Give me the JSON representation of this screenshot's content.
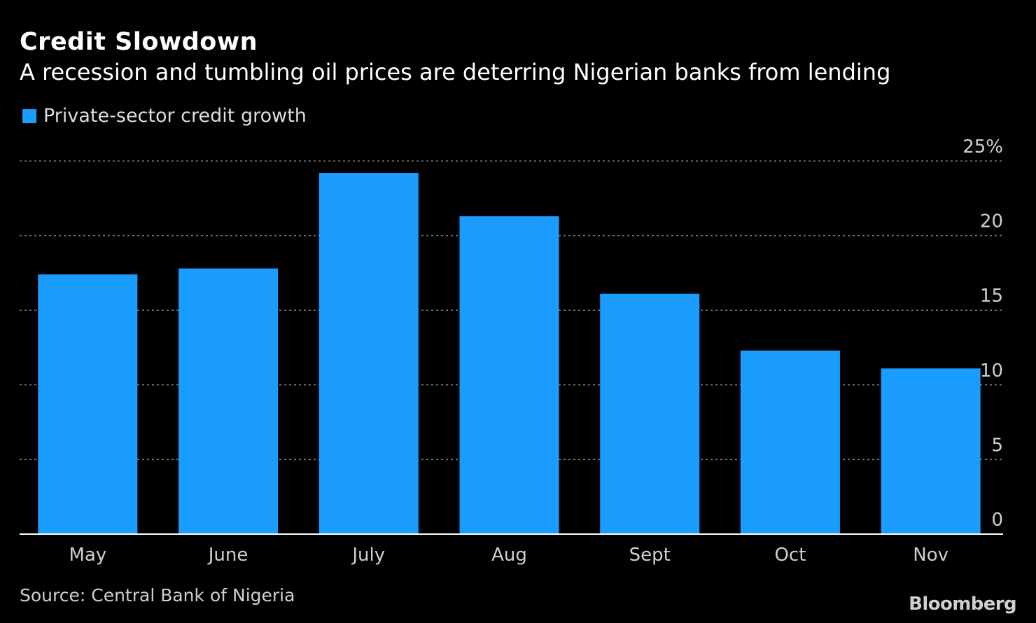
{
  "header": {
    "title": "Credit Slowdown",
    "subtitle": "A recession and tumbling oil prices are deterring Nigerian banks from lending"
  },
  "legend": {
    "label": "Private-sector credit growth"
  },
  "footer": {
    "source": "Source: Central Bank of Nigeria",
    "brand": "Bloomberg"
  },
  "colors": {
    "bar": "#1a9dff",
    "background": "#000000",
    "grid": "#777777",
    "axis": "#ffffff"
  },
  "chart_data": {
    "type": "bar",
    "title": "Credit Slowdown",
    "subtitle": "A recession and tumbling oil prices are deterring Nigerian banks from lending",
    "categories": [
      "May",
      "June",
      "July",
      "Aug",
      "Sept",
      "Oct",
      "Nov"
    ],
    "series": [
      {
        "name": "Private-sector credit growth",
        "values": [
          17.4,
          17.8,
          24.2,
          21.3,
          16.1,
          12.3,
          11.1
        ]
      }
    ],
    "ylim": [
      0,
      25
    ],
    "yticks": [
      0,
      5,
      10,
      15,
      20,
      25
    ],
    "ytick_labels": [
      "0",
      "5",
      "10",
      "15",
      "20",
      "25%"
    ],
    "y_axis_position": "right",
    "grid": true,
    "xlabel": "",
    "ylabel": "",
    "legend_position": "top-left"
  }
}
